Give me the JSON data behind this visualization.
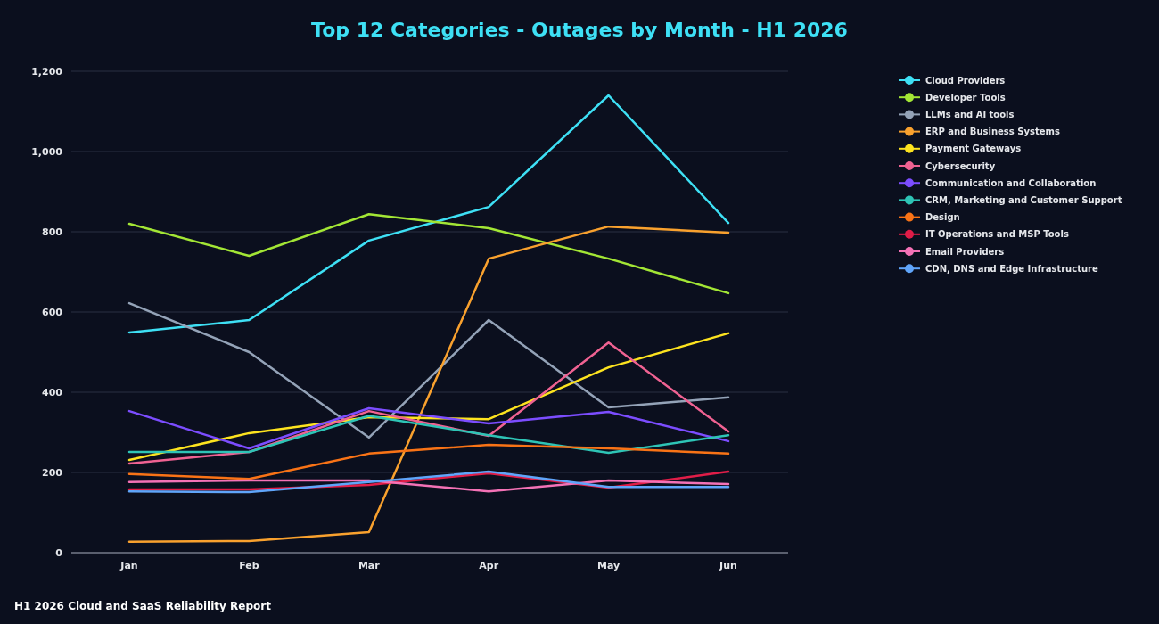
{
  "chart_data": {
    "type": "line",
    "title": "Top 12 Categories - Outages by Month - H1 2026",
    "categories": [
      "Jan",
      "Feb",
      "Mar",
      "Apr",
      "May",
      "Jun"
    ],
    "series": [
      {
        "name": "Cloud Providers",
        "color": "#3ee0f5",
        "values": [
          549,
          580,
          778,
          862,
          1140,
          822
        ]
      },
      {
        "name": "Developer Tools",
        "color": "#a3e635",
        "values": [
          820,
          740,
          844,
          809,
          733,
          647
        ]
      },
      {
        "name": "LLMs and AI tools",
        "color": "#94a3b8",
        "values": [
          622,
          500,
          287,
          580,
          362,
          387
        ]
      },
      {
        "name": "ERP and Business Systems",
        "color": "#f9a12e",
        "values": [
          27,
          29,
          51,
          733,
          813,
          798
        ]
      },
      {
        "name": "Payment Gateways",
        "color": "#fde31f",
        "values": [
          231,
          298,
          338,
          333,
          462,
          547
        ]
      },
      {
        "name": "Cybersecurity",
        "color": "#f06292",
        "values": [
          222,
          251,
          353,
          291,
          524,
          302
        ]
      },
      {
        "name": "Communication and Collaboration",
        "color": "#7c4dff",
        "values": [
          353,
          260,
          360,
          322,
          351,
          278
        ]
      },
      {
        "name": "CRM, Marketing and Customer Support",
        "color": "#2ec4b6",
        "values": [
          251,
          251,
          341,
          293,
          249,
          293
        ]
      },
      {
        "name": "Design",
        "color": "#f97316",
        "values": [
          196,
          184,
          247,
          269,
          260,
          247
        ]
      },
      {
        "name": "IT Operations and MSP Tools",
        "color": "#e11d48",
        "values": [
          158,
          158,
          169,
          198,
          162,
          202
        ]
      },
      {
        "name": "Email Providers",
        "color": "#f472b6",
        "values": [
          176,
          180,
          180,
          153,
          180,
          171
        ]
      },
      {
        "name": "CDN, DNS and Edge Infrastructure",
        "color": "#60a5fa",
        "values": [
          153,
          151,
          176,
          202,
          164,
          164
        ]
      }
    ],
    "ylim": [
      0,
      1200
    ],
    "yticks": [
      {
        "value": 0,
        "label": "0"
      },
      {
        "value": 200,
        "label": "200"
      },
      {
        "value": 400,
        "label": "400"
      },
      {
        "value": 600,
        "label": "600"
      },
      {
        "value": 800,
        "label": "800"
      },
      {
        "value": 1000,
        "label": "1,000"
      },
      {
        "value": 1200,
        "label": "1,200"
      }
    ],
    "grid": "y",
    "legend": "top right",
    "marker": "none",
    "line_style": "solid",
    "annotations": [
      "H1 2026 Cloud and SaaS Reliability Report"
    ]
  }
}
